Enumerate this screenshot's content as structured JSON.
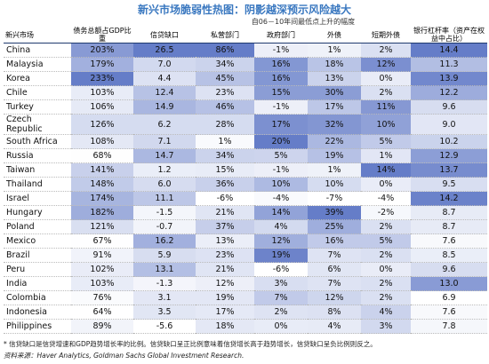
{
  "title": "新兴市场脆弱性热图：阴影越深预示风险越大",
  "table": {
    "group_header": "自06－10年间最低点上升的幅度",
    "columns": [
      "新兴市场",
      "债务总额占GDP比重",
      "信贷缺口",
      "私营部门",
      "政府部门",
      "外债",
      "短期外债",
      "银行杠杆率（资产在权益中占比）"
    ],
    "rows": [
      [
        "China",
        "203%",
        "26.5",
        "86%",
        "-1%",
        "1%",
        "2%",
        "14.4"
      ],
      [
        "Malaysia",
        "179%",
        "7.0",
        "34%",
        "16%",
        "18%",
        "12%",
        "11.3"
      ],
      [
        "Korea",
        "233%",
        "4.4",
        "45%",
        "16%",
        "13%",
        "0%",
        "13.9"
      ],
      [
        "Chile",
        "103%",
        "12.4",
        "23%",
        "15%",
        "30%",
        "2%",
        "12.2"
      ],
      [
        "Turkey",
        "106%",
        "14.9",
        "46%",
        "-1%",
        "17%",
        "11%",
        "9.6"
      ],
      [
        "Czech Republic",
        "126%",
        "6.2",
        "28%",
        "17%",
        "32%",
        "10%",
        "9.0"
      ],
      [
        "South Africa",
        "108%",
        "7.1",
        "1%",
        "20%",
        "22%",
        "5%",
        "10.2"
      ],
      [
        "Russia",
        "68%",
        "14.7",
        "34%",
        "5%",
        "19%",
        "1%",
        "12.9"
      ],
      [
        "Taiwan",
        "141%",
        "1.2",
        "15%",
        "-1%",
        "1%",
        "14%",
        "13.7"
      ],
      [
        "Thailand",
        "148%",
        "6.0",
        "36%",
        "10%",
        "10%",
        "0%",
        "9.5"
      ],
      [
        "Israel",
        "174%",
        "11.1",
        "-6%",
        "-4%",
        "-7%",
        "-4%",
        "14.2"
      ],
      [
        "Hungary",
        "182%",
        "-1.5",
        "21%",
        "14%",
        "39%",
        "-2%",
        "8.7"
      ],
      [
        "Poland",
        "121%",
        "-0.7",
        "37%",
        "4%",
        "25%",
        "2%",
        "8.7"
      ],
      [
        "Mexico",
        "67%",
        "16.2",
        "13%",
        "12%",
        "16%",
        "5%",
        "7.6"
      ],
      [
        "Brazil",
        "91%",
        "5.9",
        "23%",
        "19%",
        "7%",
        "2%",
        "8.5"
      ],
      [
        "Peru",
        "102%",
        "13.1",
        "21%",
        "-6%",
        "6%",
        "0%",
        "9.6"
      ],
      [
        "India",
        "103%",
        "-1.3",
        "12%",
        "3%",
        "7%",
        "2%",
        "13.0"
      ],
      [
        "Colombia",
        "76%",
        "3.1",
        "19%",
        "7%",
        "12%",
        "2%",
        "6.9"
      ],
      [
        "Indonesia",
        "64%",
        "3.5",
        "17%",
        "2%",
        "8%",
        "4%",
        "7.6"
      ],
      [
        "Philippines",
        "89%",
        "-5.6",
        "18%",
        "0%",
        "4%",
        "3%",
        "7.8"
      ]
    ]
  },
  "footnotes": [
    "* 信贷缺口是信贷增速和GDP趋势增长率的比例。信贷缺口呈正比例意味着信贷增长高于趋势增长，信贷缺口呈负比例则反之。",
    "资料来源：Haver Analytics, Goldman Sachs Global Investment Research."
  ]
}
